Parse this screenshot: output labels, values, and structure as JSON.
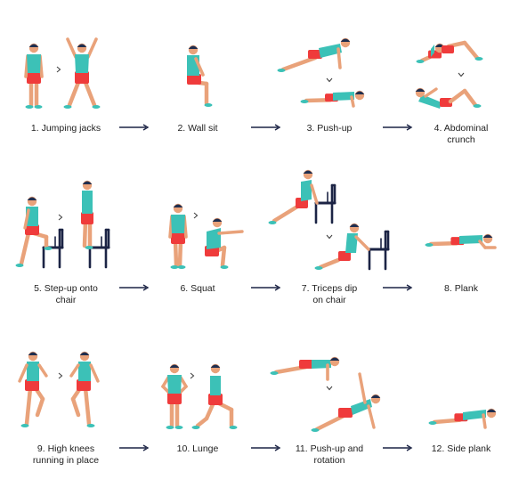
{
  "colors": {
    "skin": "#e9a27a",
    "hair": "#1f2e4f",
    "shirt": "#3cc1b7",
    "shorts": "#ef3b3b",
    "shoes": "#3cc1b7",
    "chair": "#1c2445",
    "arrow": "#1c2445",
    "text": "#222222"
  },
  "exercises": [
    {
      "label": [
        "1. Jumping jacks"
      ],
      "pose": "jumping-jacks"
    },
    {
      "label": [
        "2. Wall sit"
      ],
      "pose": "wall-sit"
    },
    {
      "label": [
        "3. Push-up"
      ],
      "pose": "push-up"
    },
    {
      "label": [
        "4. Abdominal",
        "crunch"
      ],
      "pose": "crunch"
    },
    {
      "label": [
        "5. Step-up onto",
        "chair"
      ],
      "pose": "step-up"
    },
    {
      "label": [
        "6. Squat"
      ],
      "pose": "squat"
    },
    {
      "label": [
        "7. Triceps dip",
        "on chair"
      ],
      "pose": "triceps-dip"
    },
    {
      "label": [
        "8. Plank"
      ],
      "pose": "plank"
    },
    {
      "label": [
        "9. High knees",
        "running in place"
      ],
      "pose": "high-knees"
    },
    {
      "label": [
        "10. Lunge"
      ],
      "pose": "lunge"
    },
    {
      "label": [
        "11. Push-up and",
        "rotation"
      ],
      "pose": "push-up-rotation"
    },
    {
      "label": [
        "12. Side plank"
      ],
      "pose": "side-plank"
    }
  ]
}
